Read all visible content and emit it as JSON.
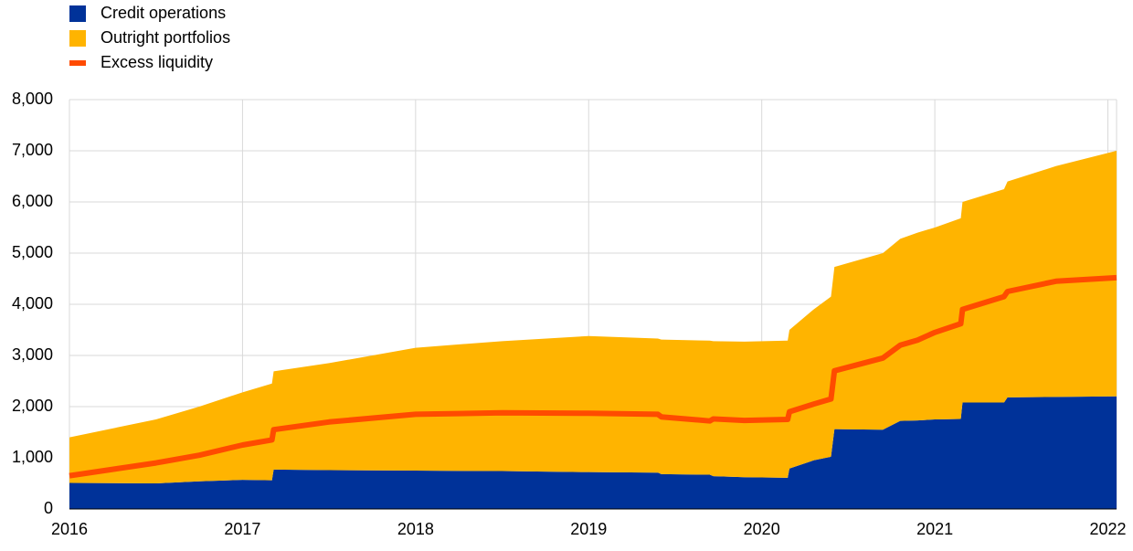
{
  "chart_data": {
    "type": "area",
    "stacked": true,
    "x": [
      2016.0,
      2016.5,
      2016.75,
      2017.0,
      2017.17,
      2017.18,
      2017.5,
      2018.0,
      2018.5,
      2019.0,
      2019.4,
      2019.42,
      2019.7,
      2019.72,
      2019.9,
      2020.15,
      2020.16,
      2020.3,
      2020.4,
      2020.42,
      2020.7,
      2020.8,
      2020.9,
      2021.0,
      2021.15,
      2021.16,
      2021.4,
      2021.42,
      2021.7,
      2022.05
    ],
    "series": [
      {
        "name": "Credit operations",
        "color": "#003299",
        "values": [
          510,
          500,
          540,
          570,
          560,
          770,
          760,
          750,
          740,
          720,
          710,
          680,
          670,
          640,
          620,
          610,
          790,
          950,
          1020,
          1560,
          1550,
          1720,
          1730,
          1750,
          1760,
          2080,
          2080,
          2180,
          2190,
          2200
        ]
      },
      {
        "name": "Outright portfolios",
        "color": "#ffb400",
        "values": [
          890,
          1250,
          1460,
          1710,
          1890,
          1920,
          2090,
          2400,
          2540,
          2660,
          2620,
          2630,
          2620,
          2640,
          2650,
          2680,
          2710,
          2950,
          3130,
          3170,
          3450,
          3560,
          3670,
          3750,
          3920,
          3920,
          4170,
          4220,
          4510,
          4800
        ]
      },
      {
        "name": "Excess liquidity",
        "color": "#ff4b00",
        "type": "line",
        "values": [
          650,
          900,
          1050,
          1250,
          1350,
          1550,
          1700,
          1850,
          1880,
          1870,
          1850,
          1800,
          1720,
          1760,
          1730,
          1750,
          1900,
          2050,
          2150,
          2700,
          2950,
          3200,
          3300,
          3450,
          3620,
          3900,
          4150,
          4250,
          4450,
          4520
        ]
      }
    ],
    "xlim": [
      2016,
      2022.05
    ],
    "xticks": [
      2016,
      2017,
      2018,
      2019,
      2020,
      2021,
      2022
    ],
    "ylim": [
      0,
      8000
    ],
    "yticks": [
      0,
      {
        "value": 1000,
        "label": "1,000"
      },
      {
        "value": 2000,
        "label": "2,000"
      },
      {
        "value": 3000,
        "label": "3,000"
      },
      {
        "value": 4000,
        "label": "4,000"
      },
      {
        "value": 5000,
        "label": "5,000"
      },
      {
        "value": 6000,
        "label": "6,000"
      },
      {
        "value": 7000,
        "label": "7,000"
      },
      {
        "value": 8000,
        "label": "8,000"
      }
    ],
    "grid": true,
    "legend": "top-left"
  }
}
